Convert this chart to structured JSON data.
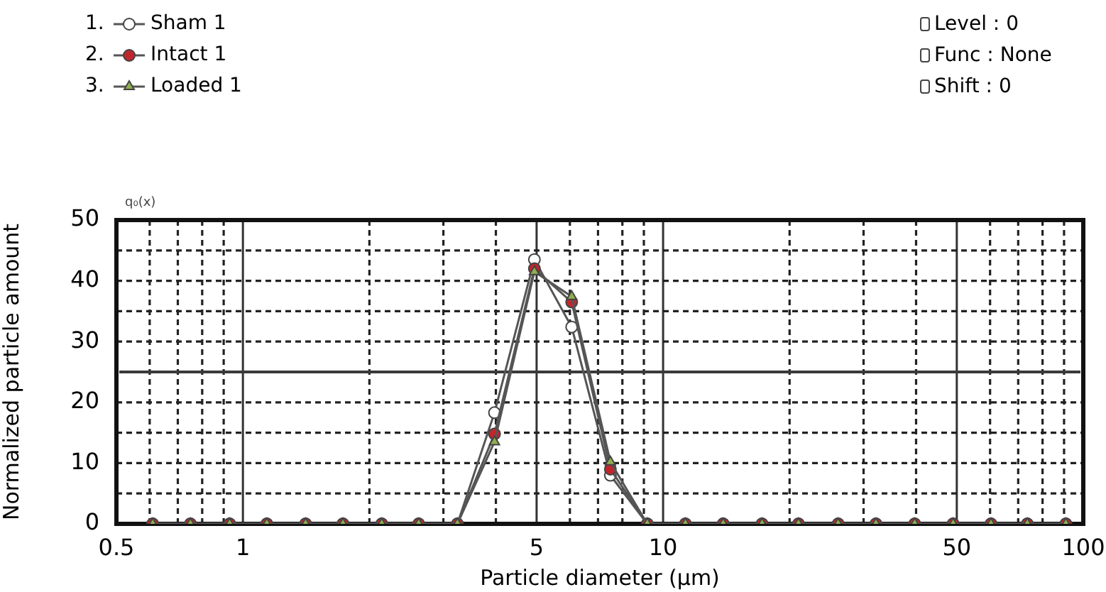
{
  "chart_data": {
    "type": "line",
    "xlabel": "Particle diameter (μm)",
    "ylabel": "Normalized particle amount",
    "x": [
      0.61,
      0.75,
      0.93,
      1.14,
      1.41,
      1.73,
      2.14,
      2.62,
      3.24,
      3.97,
      4.94,
      6.06,
      7.49,
      9.17,
      11.3,
      13.9,
      17.2,
      21,
      26.1,
      32.1,
      39.7,
      49,
      60.3,
      73.6,
      90.9
    ],
    "series": [
      {
        "name": "Sham 1",
        "color": "#ffffff",
        "marker": "circle",
        "values": [
          0,
          0,
          0,
          0,
          0,
          0,
          0,
          0,
          0,
          18.3,
          43.5,
          32.4,
          8,
          0,
          0,
          0,
          0,
          0,
          0,
          0,
          0,
          0,
          0,
          0,
          0
        ]
      },
      {
        "name": "Intact 1",
        "color": "#c0272d",
        "marker": "circle",
        "values": [
          0,
          0,
          0,
          0,
          0,
          0,
          0,
          0,
          0,
          14.8,
          42,
          36.5,
          9,
          0,
          0,
          0,
          0,
          0,
          0,
          0,
          0,
          0,
          0,
          0,
          0
        ]
      },
      {
        "name": "Loaded 1",
        "color": "#8fb050",
        "marker": "triangle",
        "values": [
          0,
          0,
          0,
          0,
          0,
          0,
          0,
          0,
          0,
          13.5,
          41.5,
          37.4,
          10.2,
          0,
          0,
          0,
          0,
          0,
          0,
          0,
          0,
          0,
          0,
          0,
          0
        ]
      }
    ],
    "log": "x",
    "xlim": [
      0.5,
      100
    ],
    "xticks": [
      0.5,
      {
        "value": 0.6,
        "label": null
      },
      {
        "value": 0.7,
        "label": null
      },
      {
        "value": 0.8,
        "label": null
      },
      {
        "value": 0.9,
        "label": null
      },
      1,
      {
        "value": 2,
        "label": null
      },
      {
        "value": 3,
        "label": null
      },
      {
        "value": 4,
        "label": null
      },
      5,
      {
        "value": 6,
        "label": null
      },
      {
        "value": 7,
        "label": null
      },
      {
        "value": 8,
        "label": null
      },
      {
        "value": 9,
        "label": null
      },
      10,
      {
        "value": 20,
        "label": null
      },
      {
        "value": 30,
        "label": null
      },
      {
        "value": 40,
        "label": null
      },
      50,
      {
        "value": 60,
        "label": null
      },
      {
        "value": 70,
        "label": null
      },
      {
        "value": 80,
        "label": null
      },
      {
        "value": 90,
        "label": null
      },
      100
    ],
    "ylim": [
      0,
      50
    ],
    "yticks": [
      0,
      {
        "value": 5,
        "label": null
      },
      10,
      {
        "value": 15,
        "label": null
      },
      20,
      {
        "value": 25,
        "label": null
      },
      30,
      {
        "value": 35,
        "label": null
      },
      40,
      {
        "value": 45,
        "label": null
      },
      50
    ],
    "ref_lines": [
      {
        "axis": "y",
        "value": 25,
        "color": "#3a3a3a"
      }
    ],
    "grid": true,
    "legend": "top left",
    "line_style": "solid",
    "annotations": [
      "Level : 0",
      "Func : None",
      "Shift : 0",
      "q₀(x)",
      "1.",
      "2.",
      "3."
    ]
  }
}
